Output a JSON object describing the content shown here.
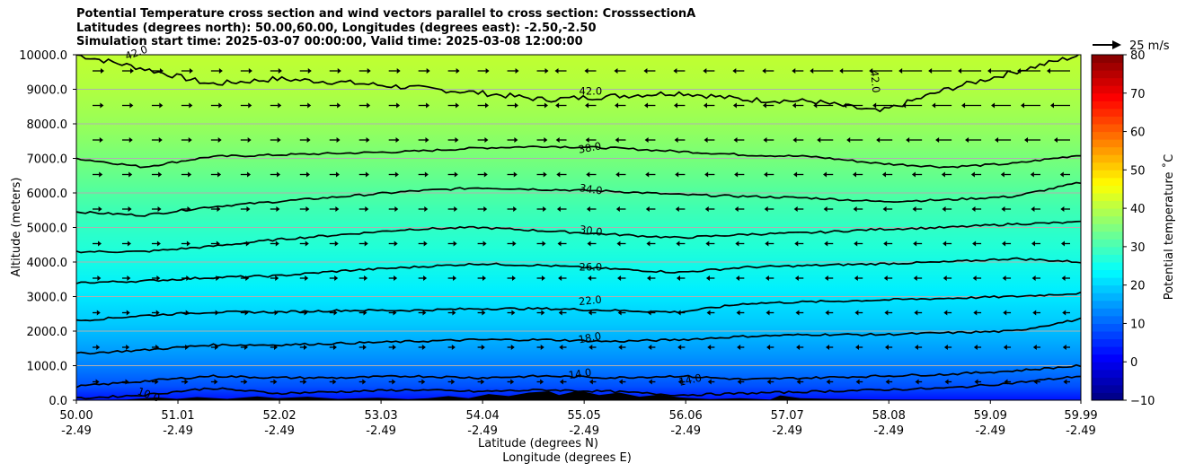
{
  "title_lines": [
    "Potential Temperature cross section and wind vectors parallel to cross section: CrosssectionA",
    "Latitudes (degrees north): 50.00,60.00, Longitudes (degrees east): -2.50,-2.50",
    "Simulation start time: 2025-03-07 00:00:00, Valid time: 2025-03-08 12:00:00"
  ],
  "chart_data": {
    "type": "contour",
    "ylabel": "Altitude (meters)",
    "xlabel_line1": "Latitude (degrees N)",
    "xlabel_line2": "Longitude (degrees E)",
    "ylim": [
      0,
      10000
    ],
    "xlim": [
      50.0,
      59.99
    ],
    "ytick_labels": [
      "0.0",
      "1000.0",
      "2000.0",
      "3000.0",
      "4000.0",
      "5000.0",
      "6000.0",
      "7000.0",
      "8000.0",
      "9000.0",
      "10000.0"
    ],
    "ytick_values": [
      0,
      1000,
      2000,
      3000,
      4000,
      5000,
      6000,
      7000,
      8000,
      9000,
      10000
    ],
    "xtick_values": [
      50.0,
      51.01,
      52.02,
      53.03,
      54.04,
      55.05,
      56.06,
      57.07,
      58.08,
      59.09,
      59.99
    ],
    "xtick_lat_labels": [
      "50.00",
      "51.01",
      "52.02",
      "53.03",
      "54.04",
      "55.05",
      "56.06",
      "57.07",
      "58.08",
      "59.09",
      "59.99"
    ],
    "xtick_lon_labels": [
      "-2.49",
      "-2.49",
      "-2.49",
      "-2.49",
      "-2.49",
      "-2.49",
      "-2.49",
      "-2.49",
      "-2.49",
      "-2.49",
      "-2.49"
    ],
    "grid": "horizontal",
    "contour_levels": [
      10.0,
      14.0,
      18.0,
      22.0,
      26.0,
      30.0,
      34.0,
      38.0,
      42.0
    ],
    "contour_labels": [
      "42.0",
      "38.0",
      "34.0",
      "30.0",
      "26.0",
      "22.0",
      "18.0",
      "14.0",
      "14.0",
      "10.0",
      "42.0",
      "42.0"
    ],
    "contour_label_values": {
      "top": "42.0",
      "c38": "38.0",
      "c34": "34.0",
      "c30": "30.0",
      "c26": "26.0",
      "c22": "22.0",
      "c18": "18.0",
      "c14a": "14.0",
      "c14b": "14.0",
      "c10": "10.0",
      "top_left": "42.0",
      "top_right": "42.0"
    },
    "contours": [
      {
        "level": 42.0,
        "heights": [
          10000,
          9600,
          9150,
          9300,
          9200,
          9050,
          8900,
          8700,
          8800,
          8900,
          8700,
          8650,
          8350,
          9000,
          9500,
          10000
        ]
      },
      {
        "level": 38.0,
        "heights": [
          7000,
          6750,
          7050,
          7100,
          7150,
          7200,
          7300,
          7350,
          7300,
          7200,
          7100,
          7050,
          6850,
          6750,
          6850,
          7100
        ]
      },
      {
        "level": 34.0,
        "heights": [
          5450,
          5350,
          5600,
          5750,
          5900,
          6050,
          6150,
          6100,
          6050,
          5950,
          5900,
          5850,
          5750,
          5800,
          5900,
          6300
        ]
      },
      {
        "level": 30.0,
        "heights": [
          4300,
          4300,
          4450,
          4650,
          4800,
          4950,
          5000,
          4900,
          4800,
          4700,
          4800,
          4850,
          4950,
          5000,
          5100,
          5150
        ]
      },
      {
        "level": 26.0,
        "heights": [
          3400,
          3450,
          3550,
          3600,
          3750,
          3850,
          3950,
          3900,
          3800,
          3700,
          3850,
          3900,
          3950,
          4000,
          4100,
          4000
        ]
      },
      {
        "level": 22.0,
        "heights": [
          2300,
          2450,
          2550,
          2550,
          2600,
          2600,
          2650,
          2650,
          2600,
          2550,
          2800,
          2850,
          2900,
          2950,
          3000,
          3100
        ]
      },
      {
        "level": 18.0,
        "heights": [
          1350,
          1450,
          1600,
          1600,
          1650,
          1700,
          1750,
          1750,
          1700,
          1750,
          1850,
          1900,
          1900,
          1950,
          2000,
          2350
        ]
      },
      {
        "level": 14.0,
        "heights": [
          400,
          550,
          700,
          650,
          650,
          700,
          650,
          700,
          650,
          700,
          600,
          650,
          700,
          750,
          850,
          1000
        ]
      },
      {
        "level": 10.0,
        "heights": [
          50,
          150,
          350,
          200,
          250,
          300,
          250,
          300,
          250,
          150,
          200,
          250,
          300,
          350,
          500,
          700
        ]
      }
    ],
    "quiver_key_label": "25 m/s",
    "colorbar": {
      "label": "Potential temperature $^\\circ$C",
      "label_display": "Potential temperature ˚C",
      "range": [
        -10,
        80
      ],
      "ticks": [
        "−10",
        "0",
        "10",
        "20",
        "30",
        "40",
        "50",
        "60",
        "70",
        "80"
      ],
      "tick_values": [
        -10,
        0,
        10,
        20,
        30,
        40,
        50,
        60,
        70,
        80
      ],
      "colormap": "jet"
    },
    "fill_colors": {
      "terrain": "#000000",
      "grid": "#b0b0b0",
      "contour_line": "#000000"
    }
  },
  "colorbar_label": "Potential temperature ˚C"
}
